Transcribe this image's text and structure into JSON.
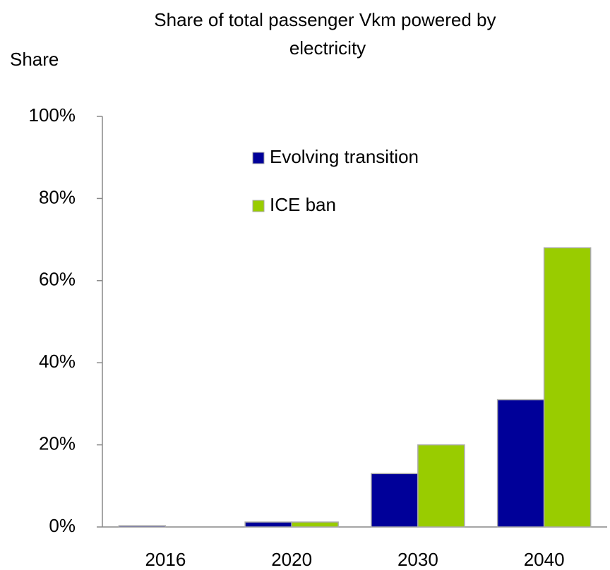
{
  "chart_data": {
    "type": "bar",
    "title": "Share of total passenger Vkm powered by electricity",
    "y_label": "Share",
    "categories": [
      "2016",
      "2020",
      "2030",
      "2040"
    ],
    "series": [
      {
        "name": "Evolving transition",
        "color": "#000099",
        "values": [
          0.3,
          1.2,
          13,
          31
        ]
      },
      {
        "name": "ICE ban",
        "color": "#99cc00",
        "values": [
          0,
          1.2,
          20,
          68
        ]
      }
    ],
    "ylim": [
      0,
      100
    ],
    "yticks": [
      {
        "value": 0,
        "label": "0%"
      },
      {
        "value": 20,
        "label": "20%"
      },
      {
        "value": 40,
        "label": "40%"
      },
      {
        "value": 60,
        "label": "60%"
      },
      {
        "value": 80,
        "label": "80%"
      },
      {
        "value": 100,
        "label": "100%"
      }
    ],
    "grid": false,
    "legend": "top-center"
  }
}
